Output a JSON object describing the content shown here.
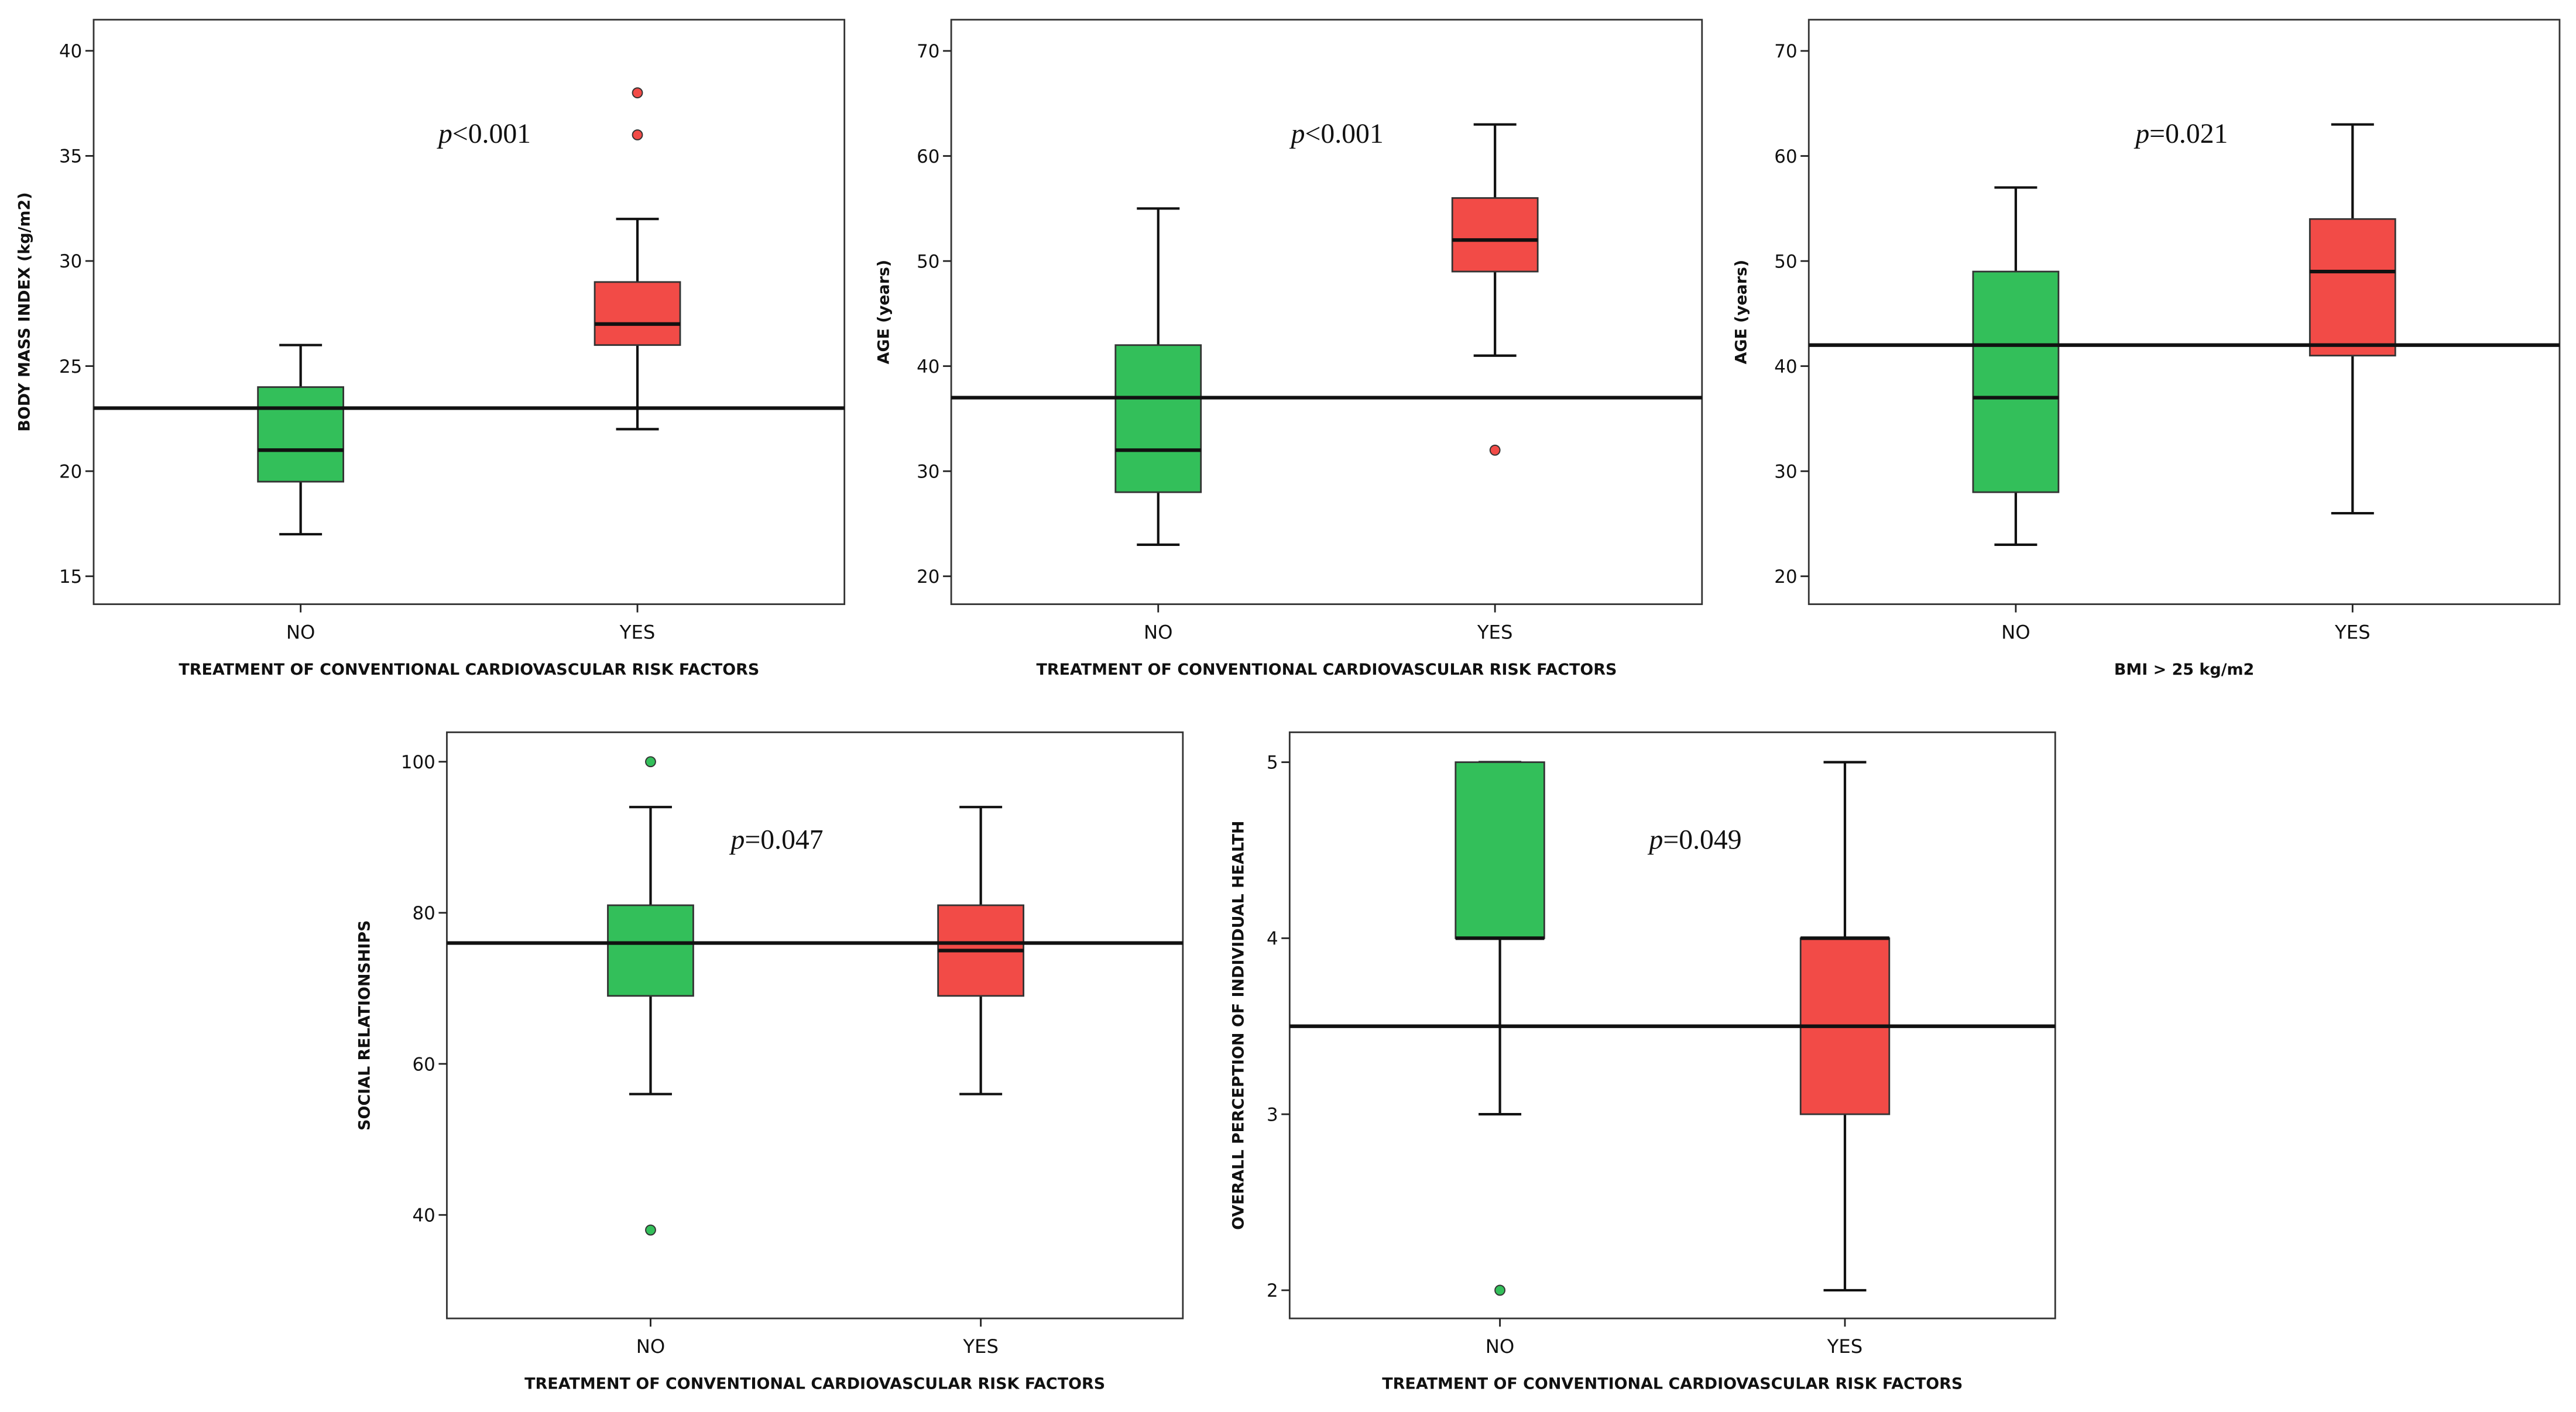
{
  "colors": {
    "NO": "#33bf5a",
    "YES": "#f24b47"
  },
  "chart_data": [
    {
      "type": "box",
      "ylabel": "BODY MASS INDEX (kg/m2)",
      "xlabel": "TREATMENT OF CONVENTIONAL CARDIOVASCULAR RISK FACTORS",
      "categories": [
        "NO",
        "YES"
      ],
      "p_symbol": "p",
      "p_text": "<0.001",
      "ylim": [
        13.67,
        41.48
      ],
      "yticks": [
        15,
        20,
        25,
        30,
        35,
        40
      ],
      "reference_line": 23,
      "boxes": [
        {
          "category": "NO",
          "whisker_low": 17,
          "q1": 19.5,
          "median": 21,
          "q3": 24,
          "whisker_high": 26,
          "outliers": []
        },
        {
          "category": "YES",
          "whisker_low": 22,
          "q1": 26,
          "median": 27,
          "q3": 29,
          "whisker_high": 32,
          "outliers": [
            36,
            38
          ]
        }
      ]
    },
    {
      "type": "box",
      "ylabel": "AGE (years)",
      "xlabel": "TREATMENT OF CONVENTIONAL CARDIOVASCULAR RISK FACTORS",
      "categories": [
        "NO",
        "YES"
      ],
      "p_symbol": "p",
      "p_text": "<0.001",
      "ylim": [
        17.34,
        72.97
      ],
      "yticks": [
        20,
        30,
        40,
        50,
        60,
        70
      ],
      "reference_line": 37,
      "boxes": [
        {
          "category": "NO",
          "whisker_low": 23,
          "q1": 28,
          "median": 32,
          "q3": 42,
          "whisker_high": 55,
          "outliers": []
        },
        {
          "category": "YES",
          "whisker_low": 41,
          "q1": 49,
          "median": 52,
          "q3": 56,
          "whisker_high": 63,
          "outliers": [
            32
          ]
        }
      ]
    },
    {
      "type": "box",
      "ylabel": "AGE (years)",
      "xlabel": "BMI > 25 kg/m2",
      "categories": [
        "NO",
        "YES"
      ],
      "p_symbol": "p",
      "p_text": "=0.021",
      "ylim": [
        17.34,
        72.97
      ],
      "yticks": [
        20,
        30,
        40,
        50,
        60,
        70
      ],
      "reference_line": 42,
      "boxes": [
        {
          "category": "NO",
          "whisker_low": 23,
          "q1": 28,
          "median": 37,
          "q3": 49,
          "whisker_high": 57,
          "outliers": []
        },
        {
          "category": "YES",
          "whisker_low": 26,
          "q1": 41,
          "median": 49,
          "q3": 54,
          "whisker_high": 63,
          "outliers": []
        }
      ]
    },
    {
      "type": "box",
      "ylabel": "SOCIAL RELATIONSHIPS",
      "xlabel": "TREATMENT OF CONVENTIONAL CARDIOVASCULAR RISK FACTORS",
      "categories": [
        "NO",
        "YES"
      ],
      "p_symbol": "p",
      "p_text": "=0.047",
      "ylim": [
        26.3,
        103.9
      ],
      "yticks": [
        40,
        60,
        80,
        100
      ],
      "reference_line": 76,
      "boxes": [
        {
          "category": "NO",
          "whisker_low": 56,
          "q1": 69,
          "median": 76,
          "q3": 81,
          "whisker_high": 94,
          "outliers": [
            38,
            100
          ]
        },
        {
          "category": "YES",
          "whisker_low": 56,
          "q1": 69,
          "median": 75,
          "q3": 81,
          "whisker_high": 94,
          "outliers": []
        }
      ]
    },
    {
      "type": "box",
      "ylabel": "OVERALL PERCEPTION OF INDIVIDUAL HEALTH",
      "xlabel": "TREATMENT OF CONVENTIONAL CARDIOVASCULAR RISK FACTORS",
      "categories": [
        "NO",
        "YES"
      ],
      "p_symbol": "p",
      "p_text": "=0.049",
      "ylim": [
        1.84,
        5.17
      ],
      "yticks": [
        2,
        3,
        4,
        5
      ],
      "reference_line": 3.5,
      "boxes": [
        {
          "category": "NO",
          "whisker_low": 3,
          "q1": 4,
          "median": 4,
          "q3": 5,
          "whisker_high": 5,
          "outliers": [
            2
          ]
        },
        {
          "category": "YES",
          "whisker_low": 2,
          "q1": 3,
          "median": 4,
          "q3": 4,
          "whisker_high": 5,
          "outliers": []
        }
      ]
    }
  ]
}
